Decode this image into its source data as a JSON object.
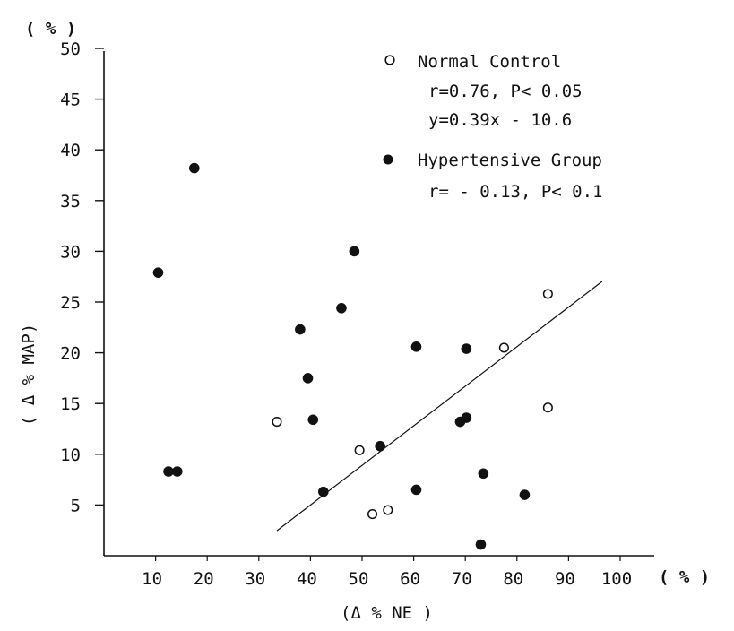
{
  "chart_data": {
    "type": "scatter",
    "title": "",
    "xlabel": "(Δ % NE )",
    "ylabel": "( Δ % MAP)",
    "x_unit": "( % )",
    "y_unit": "( % )",
    "xlim": [
      0,
      108
    ],
    "ylim": [
      0,
      50
    ],
    "x_ticks": [
      10,
      20,
      30,
      40,
      50,
      60,
      70,
      80,
      90,
      100
    ],
    "y_ticks": [
      5,
      10,
      15,
      20,
      25,
      30,
      35,
      40,
      45,
      50
    ],
    "x_tick_labels": [
      "10",
      "20",
      "30",
      "40",
      "50",
      "60",
      "70",
      "80",
      "90",
      "100"
    ],
    "y_tick_labels": [
      "5",
      "10",
      "15",
      "20",
      "25",
      "30",
      "35",
      "40",
      "45",
      "50"
    ],
    "grid": false,
    "legend_position": "top-right",
    "series": [
      {
        "name": "Normal Control",
        "marker": "open-circle",
        "stats": [
          "r=0.76, P< 0.05",
          "y=0.39x - 10.6"
        ],
        "points": [
          {
            "x": 33.5,
            "y": 13.2
          },
          {
            "x": 49.5,
            "y": 10.4
          },
          {
            "x": 52,
            "y": 4.1
          },
          {
            "x": 55,
            "y": 4.5
          },
          {
            "x": 77.5,
            "y": 20.5
          },
          {
            "x": 86,
            "y": 25.8
          },
          {
            "x": 86,
            "y": 14.6
          }
        ]
      },
      {
        "name": "Hypertensive Group",
        "marker": "filled-circle",
        "stats": [
          "r= - 0.13, P< 0.1"
        ],
        "points": [
          {
            "x": 10.5,
            "y": 27.9
          },
          {
            "x": 12.5,
            "y": 8.3
          },
          {
            "x": 14.2,
            "y": 8.3
          },
          {
            "x": 17.5,
            "y": 38.2
          },
          {
            "x": 38,
            "y": 22.3
          },
          {
            "x": 39.5,
            "y": 17.5
          },
          {
            "x": 40.5,
            "y": 13.4
          },
          {
            "x": 42.5,
            "y": 6.3
          },
          {
            "x": 46,
            "y": 24.4
          },
          {
            "x": 48.5,
            "y": 30
          },
          {
            "x": 53.5,
            "y": 10.8
          },
          {
            "x": 60.5,
            "y": 20.6
          },
          {
            "x": 60.5,
            "y": 6.5
          },
          {
            "x": 69,
            "y": 13.2
          },
          {
            "x": 70.2,
            "y": 13.6
          },
          {
            "x": 70.2,
            "y": 20.4
          },
          {
            "x": 73,
            "y": 1.1
          },
          {
            "x": 73.5,
            "y": 8.1
          },
          {
            "x": 81.5,
            "y": 6
          }
        ]
      }
    ],
    "regression_line": {
      "series": "Normal Control",
      "equation": "y=0.39x - 10.6",
      "x_start": 33.5,
      "x_end": 96.5
    }
  }
}
